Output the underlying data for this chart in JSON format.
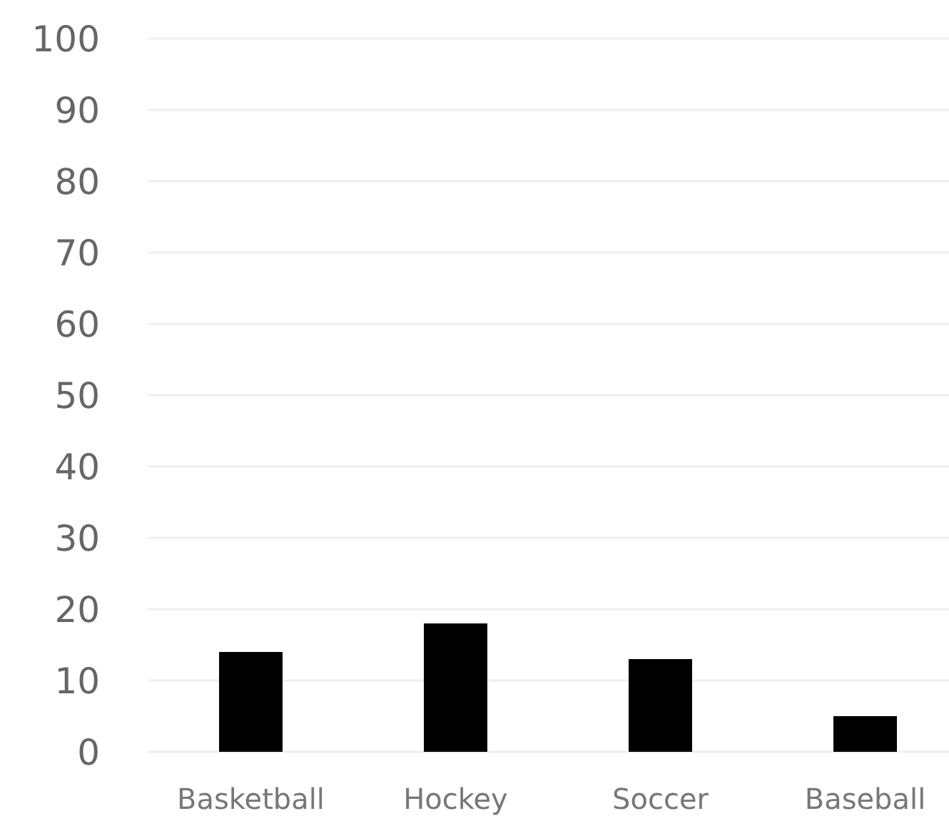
{
  "chart_data": {
    "type": "bar",
    "categories": [
      "Basketball",
      "Hockey",
      "Soccer",
      "Baseball"
    ],
    "values": [
      14,
      18,
      13,
      5
    ],
    "color": "#000000",
    "ylim": [
      0,
      100
    ],
    "yticks": [
      0,
      10,
      20,
      30,
      40,
      50,
      60,
      70,
      80,
      90,
      100
    ],
    "grid": "y"
  }
}
